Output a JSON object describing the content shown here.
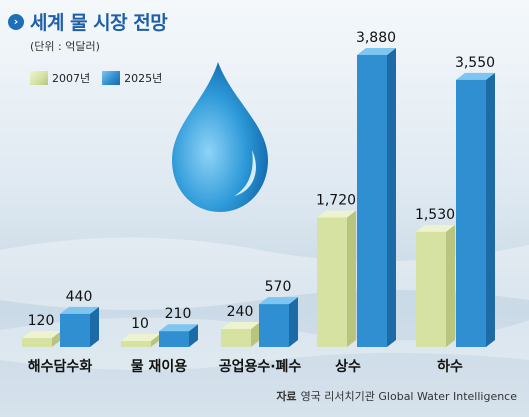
{
  "header": {
    "title": "세계 물 시장 전망",
    "unit": "(단위 : 억달러)"
  },
  "source": {
    "label": "자료",
    "text": "영국 리서치기관 Global Water Intelligence"
  },
  "colors": {
    "series_2007_front": "#d6e2a2",
    "series_2007_top": "#eef3cf",
    "series_2007_side": "#b9c57e",
    "series_2025_front": "#2f8fd0",
    "series_2025_top": "#7ec5ef",
    "series_2025_side": "#1c6aa6",
    "title": "#1e5fa8"
  },
  "chart_data": {
    "type": "bar",
    "title": "세계 물 시장 전망",
    "categories": [
      "해수담수화",
      "물 재이용",
      "공업용수·폐수",
      "상수",
      "하수"
    ],
    "series": [
      {
        "name": "2007년",
        "values": [
          120,
          10,
          240,
          1720,
          1530
        ]
      },
      {
        "name": "2025년",
        "values": [
          440,
          210,
          570,
          3880,
          3550
        ]
      }
    ],
    "value_labels": [
      [
        "120",
        "10",
        "240",
        "1,720",
        "1,530"
      ],
      [
        "440",
        "210",
        "570",
        "3,880",
        "3,550"
      ]
    ],
    "ylabel": "",
    "xlabel": "",
    "ylim": [
      0,
      3880
    ],
    "grid": false,
    "legend_position": "top-left"
  }
}
